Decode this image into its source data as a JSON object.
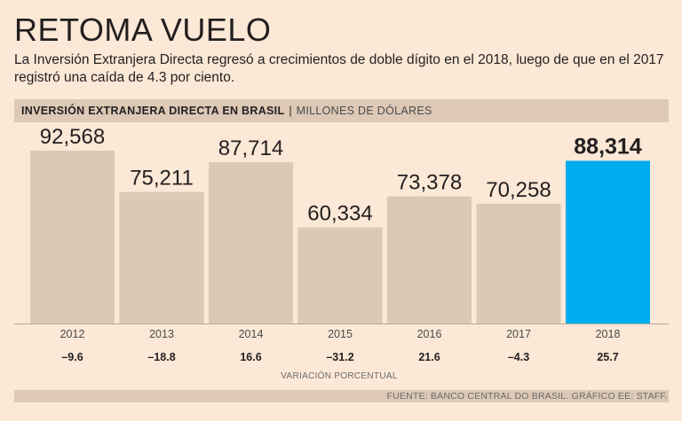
{
  "title": "RETOMA VUELO",
  "subtitle": "La Inversión Extranjera Directa regresó a crecimientos de doble dígito en el 2018, luego de que en el 2017 registró una caída de 4.3 por ciento.",
  "header": {
    "label": "INVERSIÓN EXTRANJERA DIRECTA EN BRASIL",
    "separator": "|",
    "unit": "MILLONES DE DÓLARES"
  },
  "source": "FUENTE: BANCO CENTRAL DO BRASIL. GRÁFICO EE: STAFF.",
  "colors": {
    "bar": "#dac9b7",
    "highlight": "#00aeef",
    "background": "#fbe8d6",
    "text": "#231f20"
  },
  "chart_data": {
    "type": "bar",
    "title": "INVERSIÓN EXTRANJERA DIRECTA EN BRASIL",
    "ylabel": "MILLONES DE DÓLARES",
    "categories": [
      "2012",
      "2013",
      "2014",
      "2015",
      "2016",
      "2017",
      "2018"
    ],
    "values": [
      92568,
      75211,
      87714,
      60334,
      73378,
      70258,
      88314
    ],
    "value_labels": [
      "92,568",
      "75,211",
      "87,714",
      "60,334",
      "73,378",
      "70,258",
      "88,314"
    ],
    "highlight_index": 6,
    "secondary_row": {
      "label": "VARIACIÓN PORCENTUAL",
      "values": [
        "–9.6",
        "–18.8",
        "16.6",
        "–31.2",
        "21.6",
        "–4.3",
        "25.7"
      ]
    },
    "ylim": [
      20000,
      100000
    ]
  }
}
